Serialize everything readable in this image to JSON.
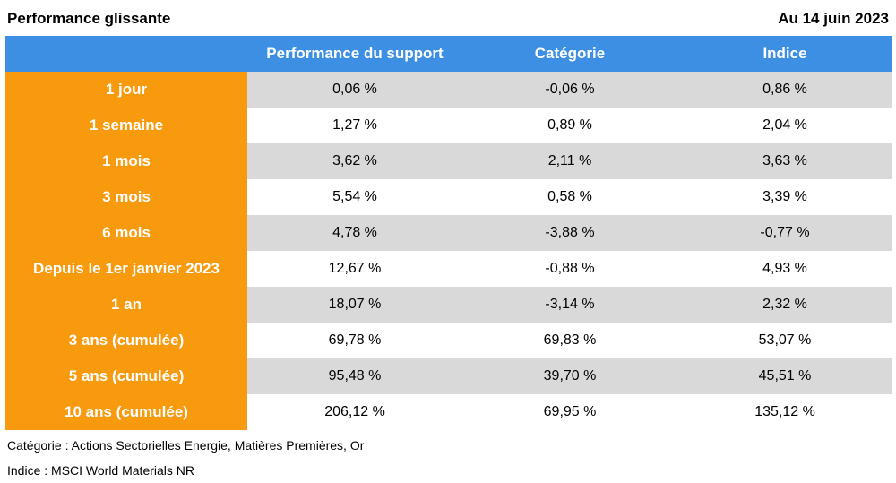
{
  "header": {
    "title": "Performance glissante",
    "date": "Au 14 juin 2023"
  },
  "table": {
    "columns": [
      "",
      "Performance du support",
      "Catégorie",
      "Indice"
    ],
    "rows": [
      {
        "label": "1 jour",
        "support": "0,06 %",
        "categorie": "-0,06 %",
        "indice": "0,86 %"
      },
      {
        "label": "1 semaine",
        "support": "1,27 %",
        "categorie": "0,89 %",
        "indice": "2,04 %"
      },
      {
        "label": "1 mois",
        "support": "3,62 %",
        "categorie": "2,11 %",
        "indice": "3,63 %"
      },
      {
        "label": "3 mois",
        "support": "5,54 %",
        "categorie": "0,58 %",
        "indice": "3,39 %"
      },
      {
        "label": "6 mois",
        "support": "4,78 %",
        "categorie": "-3,88 %",
        "indice": "-0,77 %"
      },
      {
        "label": "Depuis le 1er janvier 2023",
        "support": "12,67 %",
        "categorie": "-0,88 %",
        "indice": "4,93 %"
      },
      {
        "label": "1 an",
        "support": "18,07 %",
        "categorie": "-3,14 %",
        "indice": "2,32 %"
      },
      {
        "label": "3 ans (cumulée)",
        "support": "69,78 %",
        "categorie": "69,83 %",
        "indice": "53,07 %"
      },
      {
        "label": "5 ans (cumulée)",
        "support": "95,48 %",
        "categorie": "39,70 %",
        "indice": "45,51 %"
      },
      {
        "label": "10 ans (cumulée)",
        "support": "206,12 %",
        "categorie": "69,95 %",
        "indice": "135,12 %"
      }
    ]
  },
  "footnotes": {
    "categorie": "Catégorie : Actions Sectorielles Energie, Matières Premières, Or",
    "indice": "Indice : MSCI World Materials NR"
  },
  "colors": {
    "header_blue": "#3c8fe2",
    "label_orange": "#f79a0e",
    "row_shade": "#d9d9d9"
  }
}
